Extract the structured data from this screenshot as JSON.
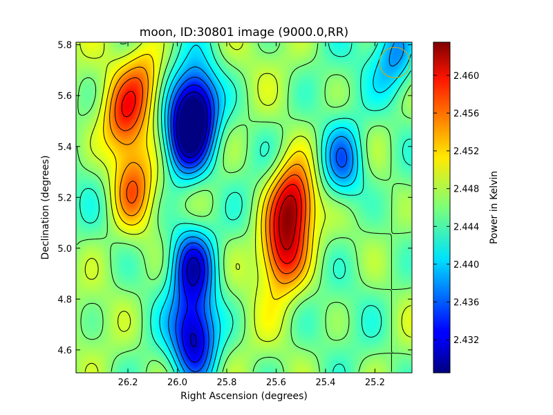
{
  "chart_data": {
    "type": "heatmap",
    "title": "moon, ID:30801 image (9000.0,RR)",
    "xlabel": "Right Ascension (degrees)",
    "ylabel": "Declination (degrees)",
    "colorbar_label": "Power in Kelvin",
    "colormap": "jet",
    "xlim": [
      26.41,
      25.05
    ],
    "ylim": [
      4.51,
      5.81
    ],
    "x_ticks": [
      "26.2",
      "26.0",
      "25.8",
      "25.6",
      "25.4",
      "25.2"
    ],
    "x_tick_values": [
      26.2,
      26.0,
      25.8,
      25.6,
      25.4,
      25.2
    ],
    "y_ticks": [
      "4.6",
      "4.8",
      "5.0",
      "5.2",
      "5.4",
      "5.6",
      "5.8"
    ],
    "y_tick_values": [
      4.6,
      4.8,
      5.0,
      5.2,
      5.4,
      5.6,
      5.8
    ],
    "colorbar_range": [
      2.4285,
      2.4635
    ],
    "colorbar_ticks": [
      "2.432",
      "2.436",
      "2.440",
      "2.444",
      "2.448",
      "2.452",
      "2.456",
      "2.460"
    ],
    "colorbar_tick_values": [
      2.432,
      2.436,
      2.44,
      2.444,
      2.448,
      2.452,
      2.456,
      2.46
    ],
    "contours": true,
    "grid": false,
    "beam_circle": {
      "ra": 25.12,
      "dec": 5.73,
      "color": "#c8a820"
    },
    "features": [
      {
        "kind": "hot",
        "ra": 25.53,
        "dec": 5.18,
        "value": 2.462
      },
      {
        "kind": "hot",
        "ra": 25.58,
        "dec": 4.98,
        "value": 2.458
      },
      {
        "kind": "warm",
        "ra": 26.22,
        "dec": 5.5,
        "value": 2.456
      },
      {
        "kind": "warm",
        "ra": 26.18,
        "dec": 5.24,
        "value": 2.455
      },
      {
        "kind": "warm",
        "ra": 26.13,
        "dec": 5.66,
        "value": 2.454
      },
      {
        "kind": "cold",
        "ra": 25.92,
        "dec": 5.56,
        "value": 2.43
      },
      {
        "kind": "cold",
        "ra": 25.97,
        "dec": 5.42,
        "value": 2.432
      },
      {
        "kind": "cold",
        "ra": 25.94,
        "dec": 4.93,
        "value": 2.433
      },
      {
        "kind": "cold",
        "ra": 25.93,
        "dec": 4.65,
        "value": 2.431
      },
      {
        "kind": "cold",
        "ra": 25.33,
        "dec": 5.33,
        "value": 2.436
      },
      {
        "kind": "cold",
        "ra": 25.12,
        "dec": 5.75,
        "value": 2.438
      }
    ]
  }
}
